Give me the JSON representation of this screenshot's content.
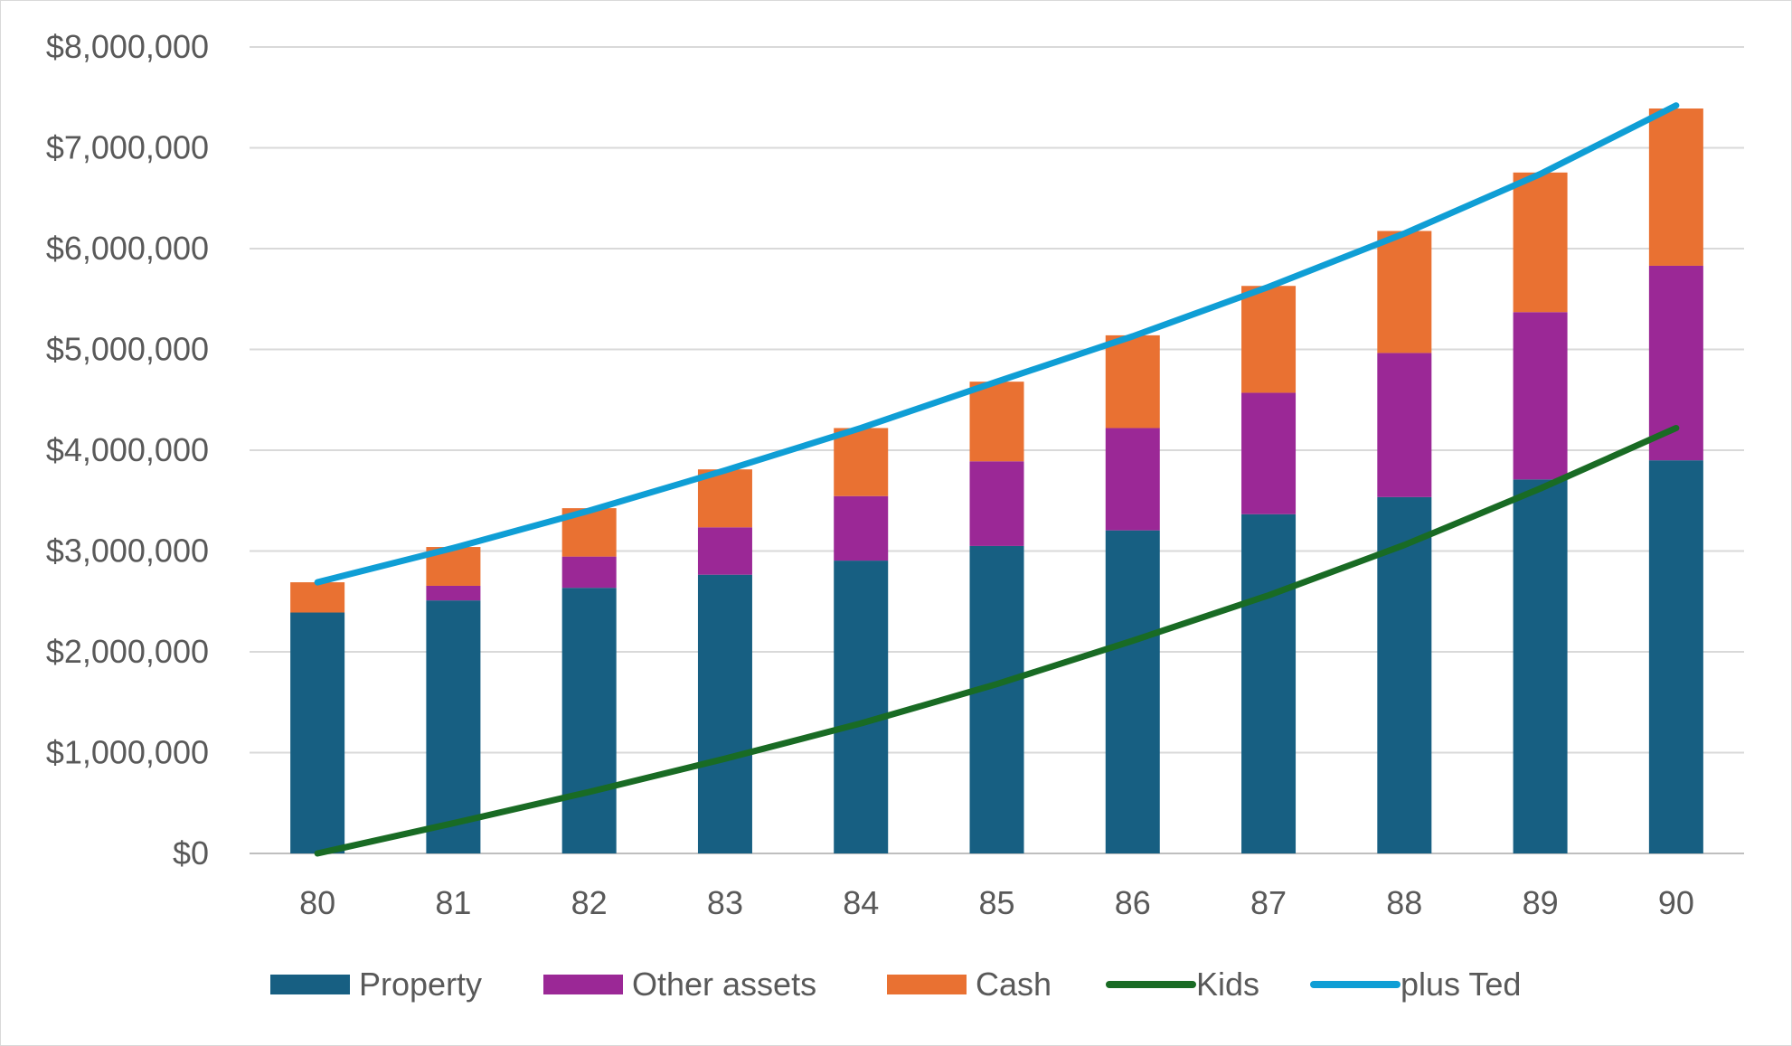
{
  "chart_data": {
    "type": "bar",
    "stacked": true,
    "categories": [
      "80",
      "81",
      "82",
      "83",
      "84",
      "85",
      "86",
      "87",
      "88",
      "89",
      "90"
    ],
    "series": [
      {
        "name": "Property",
        "kind": "bar",
        "color": "#175f82",
        "values": [
          2390000,
          2510000,
          2635000,
          2765000,
          2905000,
          3050000,
          3205000,
          3365000,
          3535000,
          3710000,
          3900000
        ]
      },
      {
        "name": "Other assets",
        "kind": "bar",
        "color": "#9b2896",
        "values": [
          0,
          145000,
          310000,
          470000,
          640000,
          840000,
          1015000,
          1205000,
          1430000,
          1660000,
          1930000
        ]
      },
      {
        "name": "Cash",
        "kind": "bar",
        "color": "#e97132",
        "values": [
          300000,
          385000,
          480000,
          575000,
          675000,
          790000,
          920000,
          1060000,
          1210000,
          1385000,
          1560000
        ]
      },
      {
        "name": "Kids",
        "kind": "line",
        "color": "#196b24",
        "values": [
          0,
          300000,
          610000,
          940000,
          1290000,
          1680000,
          2110000,
          2560000,
          3060000,
          3620000,
          4220000
        ]
      },
      {
        "name": "plus Ted",
        "kind": "line",
        "color": "#0f9ed5",
        "values": [
          2690000,
          3030000,
          3400000,
          3800000,
          4220000,
          4680000,
          5130000,
          5620000,
          6150000,
          6740000,
          7420000
        ]
      }
    ],
    "ylim": [
      0,
      8000000
    ],
    "yticks": [
      0,
      1000000,
      2000000,
      3000000,
      4000000,
      5000000,
      6000000,
      7000000,
      8000000
    ],
    "ytick_labels": [
      "$0",
      "$1,000,000",
      "$2,000,000",
      "$3,000,000",
      "$4,000,000",
      "$5,000,000",
      "$6,000,000",
      "$7,000,000",
      "$8,000,000"
    ],
    "title": "",
    "xlabel": "",
    "ylabel": "",
    "grid": true,
    "legend_position": "bottom"
  }
}
